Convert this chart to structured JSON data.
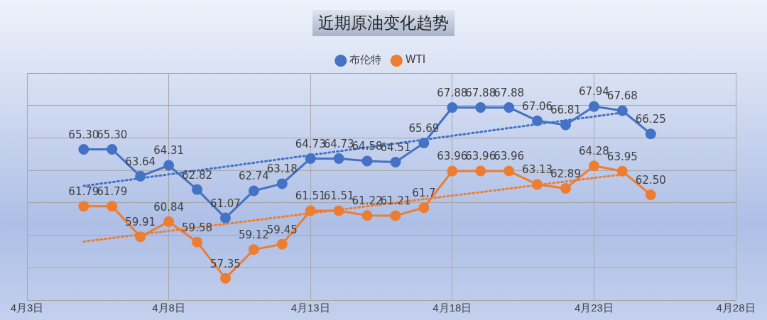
{
  "chart_data": {
    "type": "line",
    "title": "近期原油变化趋势",
    "x": [
      "--04-05",
      "--04-06",
      "--04-07",
      "--04-08",
      "--04-09",
      "--04-10",
      "--04-11",
      "--04-12",
      "--04-13",
      "--04-14",
      "--04-15",
      "--04-16",
      "--04-17",
      "--04-18",
      "--04-19",
      "--04-20",
      "--04-21",
      "--04-22",
      "--04-23",
      "--04-24",
      "--04-25"
    ],
    "series": [
      {
        "name": "布伦特",
        "color": "#4472c4",
        "values": [
          65.3,
          65.3,
          63.64,
          64.31,
          62.82,
          61.07,
          62.74,
          63.18,
          64.73,
          64.73,
          64.58,
          64.51,
          65.69,
          67.88,
          67.88,
          67.88,
          67.06,
          66.81,
          67.94,
          67.68,
          66.25
        ],
        "value_labels": [
          "65.30",
          "65.30",
          "63.64",
          "64.31",
          "62.82",
          "61.07",
          "62.74",
          "63.18",
          "64.73",
          "64.73",
          "64.58",
          "64.51",
          "65.69",
          "67.88",
          "67.88",
          "67.88",
          "67.06",
          "66.81",
          "67.94",
          "67.68",
          "66.25"
        ]
      },
      {
        "name": "WTI",
        "color": "#ed7d31",
        "values": [
          61.79,
          61.79,
          59.91,
          60.84,
          59.58,
          57.35,
          59.12,
          59.45,
          61.51,
          61.51,
          61.22,
          61.21,
          61.7,
          63.96,
          63.96,
          63.96,
          63.13,
          62.89,
          64.28,
          63.95,
          62.5
        ],
        "value_labels": [
          "61.79",
          "61.79",
          "59.91",
          "60.84",
          "59.58",
          "57.35",
          "59.12",
          "59.45",
          "61.51",
          "61.51",
          "61.22",
          "61.21",
          "61.7",
          "63.96",
          "63.96",
          "63.96",
          "63.13",
          "62.89",
          "64.28",
          "63.95",
          "62.50"
        ]
      },
      {
        "type": "line",
        "color": "#4472c4",
        "x": [
          "--04-05",
          "--04-24"
        ],
        "values": [
          63.04,
          67.56
        ],
        "line_style": "dotted",
        "marker": "none"
      },
      {
        "type": "line",
        "color": "#ed7d31",
        "x": [
          "--04-05",
          "--04-24"
        ],
        "values": [
          59.61,
          63.75
        ],
        "line_style": "dotted",
        "marker": "none"
      }
    ],
    "xlim": [
      "--04-03",
      "--04-28"
    ],
    "xticks": [
      {
        "value": "--04-03",
        "label": "4月3日"
      },
      {
        "value": "--04-08",
        "label": "4月8日"
      },
      {
        "value": "--04-13",
        "label": "4月13日"
      },
      {
        "value": "--04-18",
        "label": "4月18日"
      },
      {
        "value": "--04-23",
        "label": "4月23日"
      },
      {
        "value": "--04-28",
        "label": "4月28日"
      }
    ],
    "ylim": [
      56,
      70
    ],
    "yticks": [
      56,
      58,
      60,
      62,
      64,
      66,
      68,
      70
    ],
    "tick_labels": "x",
    "grid": true,
    "legend": "top",
    "marker": "circle"
  }
}
